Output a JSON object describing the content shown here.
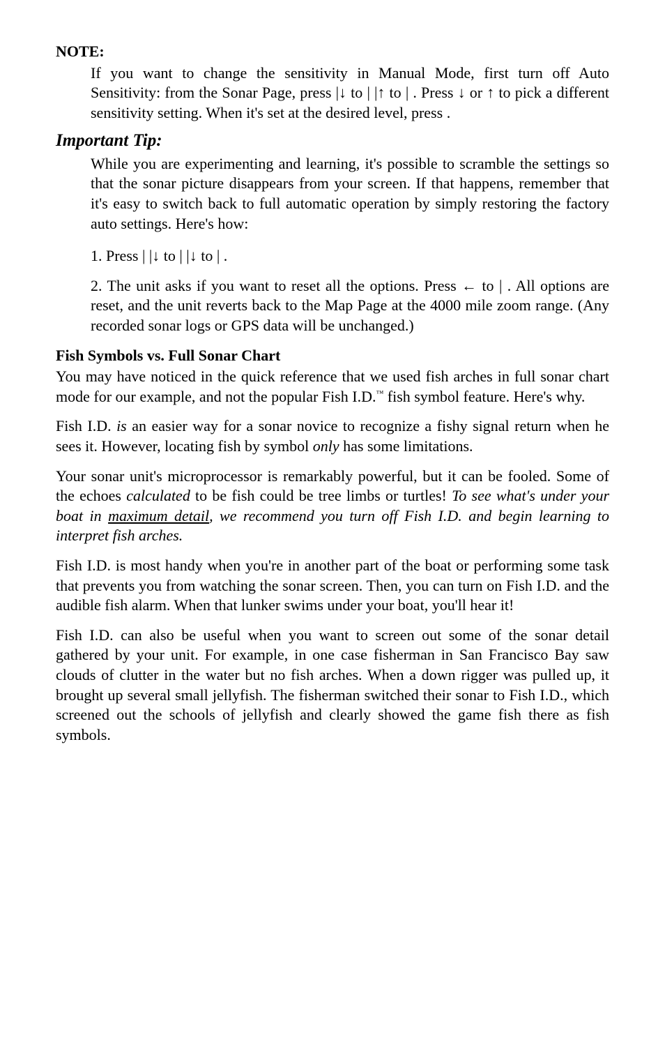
{
  "note": {
    "heading": "NOTE:",
    "body_1": "If you want to change the sensitivity in Manual Mode, first turn off Auto Sensitivity: from the Sonar Page, press ",
    "body_2": "|↓ to ",
    "body_3": "| ",
    "body_4": "|↑ to ",
    "body_5": "| ",
    "body_6": ". Press ↓ or ↑ to pick a different sensitivity setting. When it's set at the desired level, press ",
    "body_7": "."
  },
  "tip": {
    "heading": "Important Tip:",
    "body": "While you are experimenting and learning, it's possible to scramble the settings so that the sonar picture disappears from your screen. If that happens, remember that it's easy to switch back to full automatic operation by simply restoring the factory auto settings. Here's how:",
    "step1_a": "1. Press ",
    "step1_b": "| ",
    "step1_c": "|↓ to ",
    "step1_d": "| ",
    "step1_e": "|↓ to ",
    "step1_f": "| ",
    "step1_g": ".",
    "step2_a": "2. The unit asks if you want to reset all the options. Press ← to ",
    "step2_b": "| ",
    "step2_c": ". All options are reset, and the unit reverts back to the Map Page at the 4000 mile zoom range. (Any recorded sonar logs or GPS data will be unchanged.)"
  },
  "fish": {
    "heading": "Fish Symbols vs. Full Sonar Chart",
    "p1_a": "You may have noticed in the quick reference that we used fish arches in full sonar chart mode for our example, and not the popular Fish I.D.",
    "p1_tm": "™",
    "p1_b": " fish symbol feature. Here's why.",
    "p2_a": "Fish I.D. ",
    "p2_is": "is",
    "p2_b": " an easier way for a sonar novice to recognize a fishy signal return when he sees it. However, locating fish by symbol ",
    "p2_only": "only",
    "p2_c": " has some limitations.",
    "p3_a": "Your sonar unit's microprocessor is remarkably powerful, but it can be fooled. Some of the echoes ",
    "p3_calc": "calculated",
    "p3_b": " to be fish could be tree limbs or turtles! ",
    "p3_ital_a": "To see what's under your boat in ",
    "p3_ul": "maximum detail",
    "p3_ital_b": ", we recommend you turn off Fish I.D. and begin learning to interpret fish arches.",
    "p4": "Fish I.D. is most handy when you're in another part of the boat or performing some task that prevents you from watching the sonar screen. Then, you can turn on Fish I.D. and the audible fish alarm. When that lunker swims under your boat, you'll hear it!",
    "p5": "Fish I.D. can also be useful when you want to screen out some of the sonar detail gathered by your unit. For example, in one case fisherman in San Francisco Bay saw clouds of clutter in the water but no fish arches. When a down rigger was pulled up, it brought up several small jellyfish. The fisherman switched their sonar to Fish I.D., which screened out the schools of jellyfish and clearly showed the game fish there as fish symbols."
  }
}
